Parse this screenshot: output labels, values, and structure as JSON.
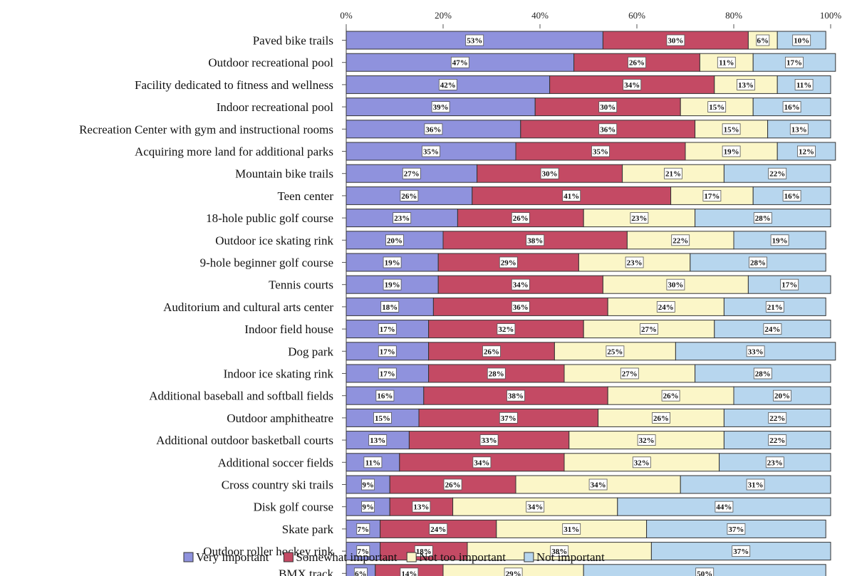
{
  "chart_data": {
    "type": "bar",
    "orientation": "horizontal",
    "stacked": true,
    "percent_stacked": true,
    "title": "",
    "xlabel": "",
    "ylabel": "",
    "xlim": [
      0,
      100
    ],
    "x_ticks": [
      "0%",
      "20%",
      "40%",
      "60%",
      "80%",
      "100%"
    ],
    "x_tick_values": [
      0,
      20,
      40,
      60,
      80,
      100
    ],
    "x_axis_position": "top",
    "grid": false,
    "legend_position": "bottom",
    "categories": [
      "Paved bike trails",
      "Outdoor recreational pool",
      "Facility dedicated to fitness and wellness",
      "Indoor recreational pool",
      "Recreation Center with gym and instructional rooms",
      "Acquiring more land for additional parks",
      "Mountain bike trails",
      "Teen center",
      "18-hole public golf course",
      "Outdoor ice skating rink",
      "9-hole beginner golf course",
      "Tennis courts",
      "Auditorium and cultural arts center",
      "Indoor field house",
      "Dog park",
      "Indoor ice skating rink",
      "Additional baseball and softball fields",
      "Outdoor amphitheatre",
      "Additional outdoor basketball courts",
      "Additional soccer fields",
      "Cross country ski trails",
      "Disk golf course",
      "Skate park",
      "Outdoor roller hockey rink",
      "BMX track"
    ],
    "series": [
      {
        "name": "Very important",
        "color": "#8f92dd",
        "values": [
          53,
          47,
          42,
          39,
          36,
          35,
          27,
          26,
          23,
          20,
          19,
          19,
          18,
          17,
          17,
          17,
          16,
          15,
          13,
          11,
          9,
          9,
          7,
          7,
          6
        ]
      },
      {
        "name": "Somewhat important",
        "color": "#c44a64",
        "values": [
          30,
          26,
          34,
          30,
          36,
          35,
          30,
          41,
          26,
          38,
          29,
          34,
          36,
          32,
          26,
          28,
          38,
          37,
          33,
          34,
          26,
          13,
          24,
          18,
          14
        ]
      },
      {
        "name": "Not too important",
        "color": "#fbf6c8",
        "values": [
          6,
          11,
          13,
          15,
          15,
          19,
          21,
          17,
          23,
          22,
          23,
          30,
          24,
          27,
          25,
          27,
          26,
          26,
          32,
          32,
          34,
          34,
          31,
          38,
          29
        ]
      },
      {
        "name": "Not important",
        "color": "#b7d6ee",
        "values": [
          10,
          17,
          11,
          16,
          13,
          12,
          22,
          16,
          28,
          19,
          28,
          17,
          21,
          24,
          33,
          28,
          20,
          22,
          22,
          23,
          31,
          44,
          37,
          37,
          50
        ]
      }
    ],
    "value_suffix": "%"
  }
}
